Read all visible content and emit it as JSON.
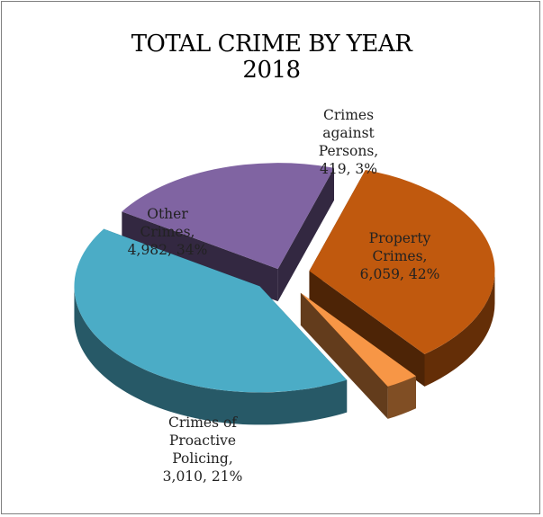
{
  "chart_data": {
    "type": "pie",
    "title_lines": [
      "TOTAL CRIME BY YEAR",
      "2018"
    ],
    "three_d": true,
    "exploded": true,
    "slices": [
      {
        "name": "Property Crimes",
        "value": 6059,
        "percent": "42%",
        "color": "#4BACC6",
        "label_lines": [
          "Property",
          "Crimes,",
          "6,059, 42%"
        ]
      },
      {
        "name": "Crimes of Proactive Policing",
        "value": 3010,
        "percent": "21%",
        "color": "#8064A2",
        "label_lines": [
          "Crimes of",
          "Proactive",
          "Policing,",
          "3,010, 21%"
        ]
      },
      {
        "name": "Other Crimes",
        "value": 4982,
        "percent": "34%",
        "color": "#C0590E",
        "label_lines": [
          "Other",
          "Crimes,",
          "4,982, 34%"
        ]
      },
      {
        "name": "Crimes against Persons",
        "value": 419,
        "percent": "3%",
        "color": "#F79646",
        "label_lines": [
          "Crimes",
          "against",
          "Persons,",
          "419, 3%"
        ]
      }
    ]
  }
}
